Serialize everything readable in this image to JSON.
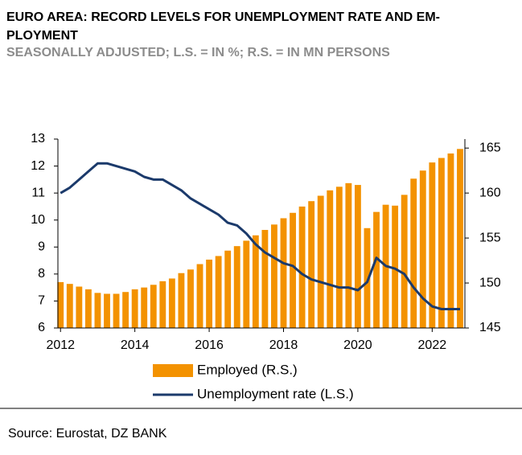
{
  "chart_data": {
    "type": "bar",
    "title": [
      "EURO AREA: RECORD LEVELS FOR UNEMPLOYMENT RATE AND EM-",
      "PLOYMENT"
    ],
    "subtitle": "SEASONALLY ADJUSTED; L.S. = IN %; R.S. = IN MN PERSONS",
    "source": "Source: Eurostat, DZ BANK",
    "x": [
      2012,
      2012.25,
      2012.5,
      2012.75,
      2013,
      2013.25,
      2013.5,
      2013.75,
      2014,
      2014.25,
      2014.5,
      2014.75,
      2015,
      2015.25,
      2015.5,
      2015.75,
      2016,
      2016.25,
      2016.5,
      2016.75,
      2017,
      2017.25,
      2017.5,
      2017.75,
      2018,
      2018.25,
      2018.5,
      2018.75,
      2019,
      2019.25,
      2019.5,
      2019.75,
      2020,
      2020.25,
      2020.5,
      2020.75,
      2021,
      2021.25,
      2021.5,
      2021.75,
      2022,
      2022.25,
      2022.5,
      2022.75
    ],
    "series": [
      {
        "name": "Employed (R.S.)",
        "type": "bar",
        "axis": "y2",
        "color": "#f39200",
        "values": [
          150.1,
          149.9,
          149.6,
          149.3,
          148.9,
          148.8,
          148.8,
          149.0,
          149.3,
          149.5,
          149.8,
          150.2,
          150.5,
          151.1,
          151.5,
          152.1,
          152.6,
          153.0,
          153.6,
          154.1,
          154.7,
          155.3,
          155.9,
          156.5,
          157.2,
          157.8,
          158.5,
          159.1,
          159.7,
          160.3,
          160.7,
          161.1,
          160.9,
          156.1,
          157.9,
          158.7,
          158.6,
          159.8,
          161.6,
          162.5,
          163.4,
          163.9,
          164.4,
          164.9
        ]
      },
      {
        "name": "Unemployment rate (L.S.)",
        "type": "line",
        "axis": "y",
        "color": "#1b3a6b",
        "values": [
          11.0,
          11.2,
          11.5,
          11.8,
          12.1,
          12.1,
          12.0,
          11.9,
          11.8,
          11.6,
          11.5,
          11.5,
          11.3,
          11.1,
          10.8,
          10.6,
          10.4,
          10.2,
          9.9,
          9.8,
          9.5,
          9.1,
          8.8,
          8.6,
          8.4,
          8.3,
          8.0,
          7.8,
          7.7,
          7.6,
          7.5,
          7.5,
          7.4,
          7.7,
          8.6,
          8.3,
          8.2,
          8.0,
          7.5,
          7.1,
          6.8,
          6.7,
          6.7,
          6.7
        ]
      }
    ],
    "xlim": [
      2011.93,
      2022.88
    ],
    "xticks": [
      2012,
      2014,
      2016,
      2018,
      2020,
      2022
    ],
    "ylim": [
      6,
      13
    ],
    "yticks": [
      6,
      7,
      8,
      9,
      10,
      11,
      12,
      13
    ],
    "y2lim": [
      145,
      166
    ],
    "y2ticks": [
      145,
      150,
      155,
      160,
      165
    ],
    "legend": "bottom"
  }
}
